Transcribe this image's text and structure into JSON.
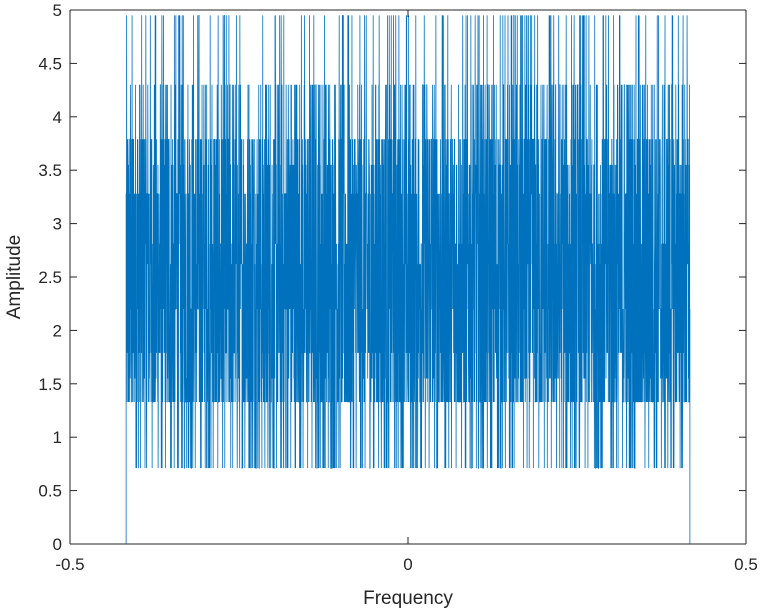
{
  "chart_data": {
    "type": "line",
    "title": "",
    "xlabel": "Frequency",
    "ylabel": "Amplitude",
    "xlim": [
      -0.5,
      0.5
    ],
    "ylim": [
      0,
      5
    ],
    "xticks": [
      -0.5,
      0,
      0.5
    ],
    "xtick_labels": [
      "-0.5",
      "0",
      "0.5"
    ],
    "yticks": [
      0,
      0.5,
      1,
      1.5,
      2,
      2.5,
      3,
      3.5,
      4,
      4.5,
      5
    ],
    "ytick_labels": [
      "0",
      "0.5",
      "1",
      "1.5",
      "2",
      "2.5",
      "3",
      "3.5",
      "4",
      "4.5",
      "5"
    ],
    "grid": false,
    "box": true,
    "series": [
      {
        "color": "#0072BD",
        "passband": [
          -0.417,
          0.417
        ],
        "stopband_value": 0,
        "amplitude_levels": [
          0.71,
          1.33,
          1.55,
          1.79,
          2.2,
          2.62,
          2.81,
          3.28,
          3.55,
          3.79,
          4.3,
          4.95
        ],
        "amplitude_level_weights": [
          0.08,
          0.15,
          0.05,
          0.1,
          0.1,
          0.08,
          0.08,
          0.1,
          0.06,
          0.1,
          0.06,
          0.04
        ]
      }
    ]
  },
  "colors": {
    "series": "#0072BD",
    "axis": "#262626",
    "background": "#ffffff"
  }
}
